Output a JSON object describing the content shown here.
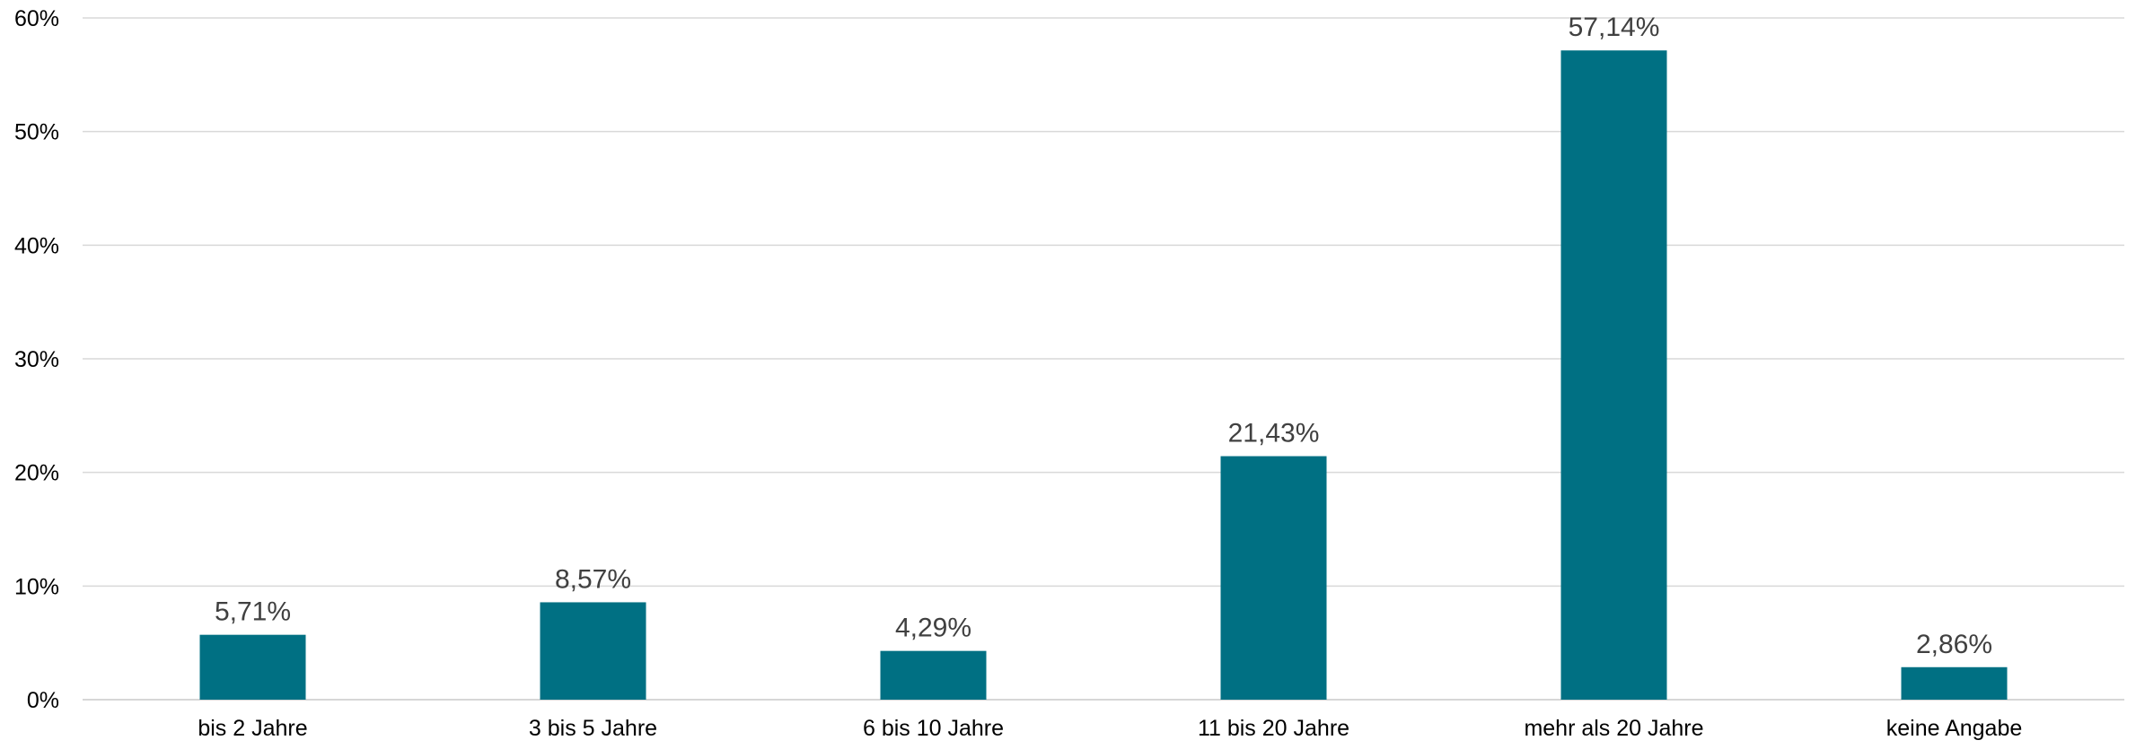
{
  "chart_data": {
    "type": "bar",
    "title": "",
    "xlabel": "",
    "ylabel": "",
    "categories": [
      "bis 2 Jahre",
      "3 bis 5 Jahre",
      "6 bis 10 Jahre",
      "11 bis 20 Jahre",
      "mehr als 20 Jahre",
      "keine Angabe"
    ],
    "values": [
      5.71,
      8.57,
      4.29,
      21.43,
      57.14,
      2.86
    ],
    "data_labels": [
      "5,71%",
      "8,57%",
      "4,29%",
      "21,43%",
      "57,14%",
      "2,86%"
    ],
    "ylim": [
      0,
      60
    ],
    "y_ticks": [
      0,
      10,
      20,
      30,
      40,
      50,
      60
    ],
    "y_tick_labels": [
      "0%",
      "10%",
      "20%",
      "30%",
      "40%",
      "50%",
      "60%"
    ],
    "grid": true,
    "legend": "none",
    "bar_color": "#007083"
  }
}
